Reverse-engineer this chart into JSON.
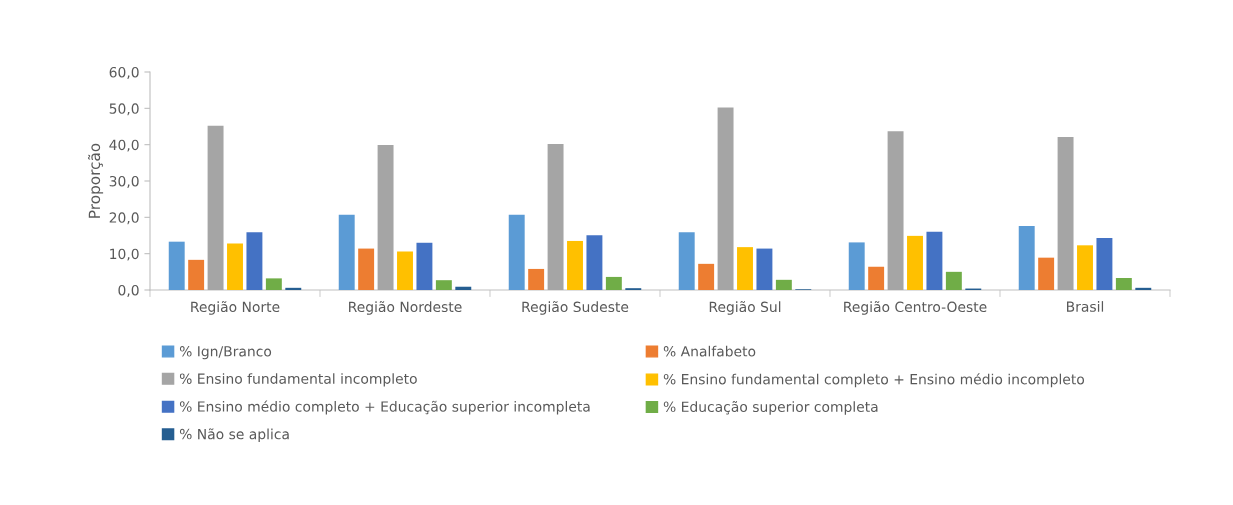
{
  "chart_data": {
    "type": "bar",
    "ylabel": "Proporção",
    "categories": [
      "Região Norte",
      "Região Nordeste",
      "Região Sudeste",
      "Região Sul",
      "Região Centro-Oeste",
      "Brasil"
    ],
    "series": [
      {
        "name": "% Ign/Branco",
        "color": "#5b9bd5",
        "values": [
          13.3,
          20.7,
          20.7,
          15.9,
          13.1,
          17.6
        ]
      },
      {
        "name": "% Analfabeto",
        "color": "#ed7d31",
        "values": [
          8.3,
          11.4,
          5.8,
          7.2,
          6.4,
          8.9
        ]
      },
      {
        "name": "% Ensino fundamental incompleto",
        "color": "#a5a5a5",
        "values": [
          45.2,
          39.9,
          40.2,
          50.2,
          43.7,
          42.1
        ]
      },
      {
        "name": "% Ensino fundamental completo + Ensino médio incompleto",
        "color": "#ffc000",
        "values": [
          12.8,
          10.6,
          13.5,
          11.8,
          14.9,
          12.3
        ]
      },
      {
        "name": "% Ensino médio completo + Educação superior incompleta",
        "color": "#4472c4",
        "values": [
          15.9,
          13.0,
          15.1,
          11.4,
          16.0,
          14.3
        ]
      },
      {
        "name": "% Educação superior completa",
        "color": "#70ad47",
        "values": [
          3.2,
          2.7,
          3.6,
          2.8,
          5.0,
          3.3
        ]
      },
      {
        "name": "% Não se aplica",
        "color": "#255e91",
        "values": [
          0.6,
          0.9,
          0.5,
          0.2,
          0.4,
          0.6
        ]
      }
    ],
    "ylim": [
      0,
      60
    ],
    "yticks": [
      {
        "value": 0,
        "label": "0,0"
      },
      {
        "value": 10,
        "label": "10,0"
      },
      {
        "value": 20,
        "label": "20,0"
      },
      {
        "value": 30,
        "label": "30,0"
      },
      {
        "value": 40,
        "label": "40,0"
      },
      {
        "value": 50,
        "label": "50,0"
      },
      {
        "value": 60,
        "label": "60,0"
      }
    ],
    "grid": false,
    "legend": "bottom"
  }
}
